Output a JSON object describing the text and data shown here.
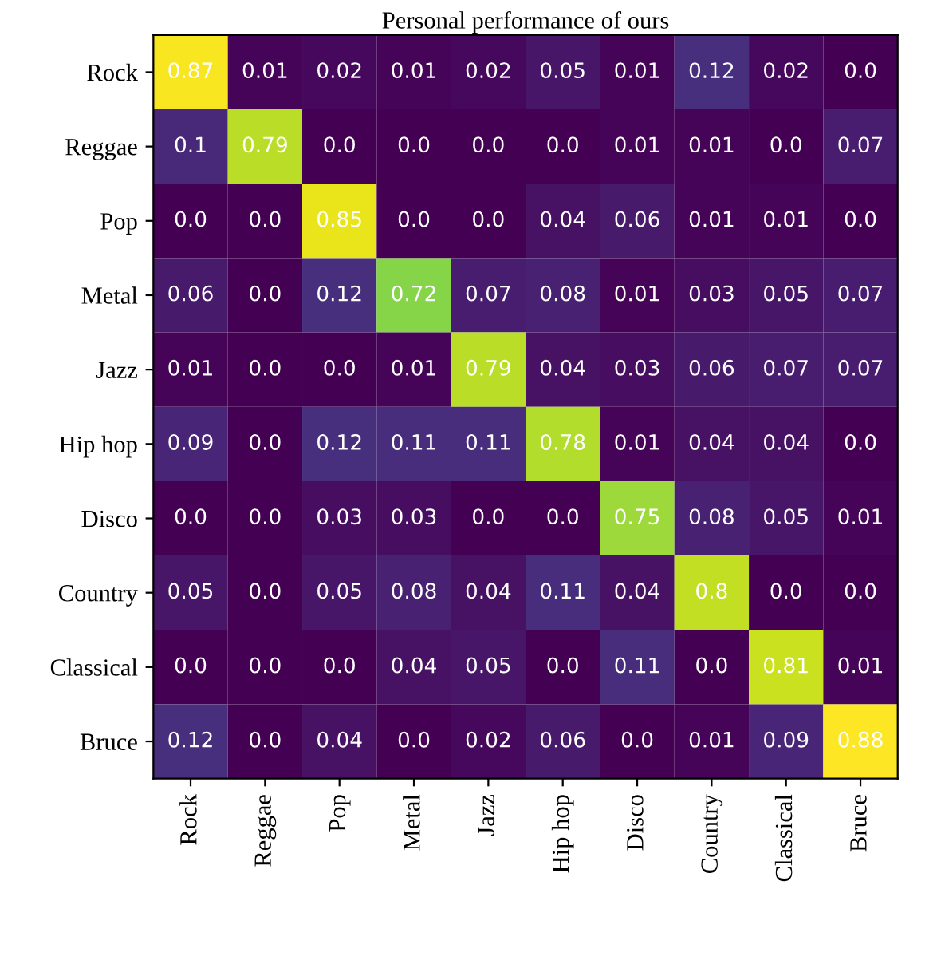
{
  "chart_data": {
    "type": "heatmap",
    "title": "Personal performance of ours",
    "categories": [
      "Rock",
      "Reggae",
      "Pop",
      "Metal",
      "Jazz",
      "Hip hop",
      "Disco",
      "Country",
      "Classical",
      "Bruce"
    ],
    "y_categories": [
      "Rock",
      "Reggae",
      "Pop",
      "Metal",
      "Jazz",
      "Hip hop",
      "Disco",
      "Country",
      "Classical",
      "Bruce"
    ],
    "cells": [
      [
        0.87,
        0.01,
        0.02,
        0.01,
        0.02,
        0.05,
        0.01,
        0.12,
        0.02,
        0.0
      ],
      [
        0.1,
        0.79,
        0.0,
        0.0,
        0.0,
        0.0,
        0.01,
        0.01,
        0.0,
        0.07
      ],
      [
        0.0,
        0.0,
        0.85,
        0.0,
        0.0,
        0.04,
        0.06,
        0.01,
        0.01,
        0.0
      ],
      [
        0.06,
        0.0,
        0.12,
        0.72,
        0.07,
        0.08,
        0.01,
        0.03,
        0.05,
        0.07
      ],
      [
        0.01,
        0.0,
        0.0,
        0.01,
        0.79,
        0.04,
        0.03,
        0.06,
        0.07,
        0.07
      ],
      [
        0.09,
        0.0,
        0.12,
        0.11,
        0.11,
        0.78,
        0.01,
        0.04,
        0.04,
        0.0
      ],
      [
        0.0,
        0.0,
        0.03,
        0.03,
        0.0,
        0.0,
        0.75,
        0.08,
        0.05,
        0.01
      ],
      [
        0.05,
        0.0,
        0.05,
        0.08,
        0.04,
        0.11,
        0.04,
        0.8,
        0.0,
        0.0
      ],
      [
        0.0,
        0.0,
        0.0,
        0.04,
        0.05,
        0.0,
        0.11,
        0.0,
        0.81,
        0.01
      ],
      [
        0.12,
        0.0,
        0.04,
        0.0,
        0.02,
        0.06,
        0.0,
        0.01,
        0.09,
        0.88
      ]
    ],
    "cell_labels": [
      [
        "0.87",
        "0.01",
        "0.02",
        "0.01",
        "0.02",
        "0.05",
        "0.01",
        "0.12",
        "0.02",
        "0.0"
      ],
      [
        "0.1",
        "0.79",
        "0.0",
        "0.0",
        "0.0",
        "0.0",
        "0.01",
        "0.01",
        "0.0",
        "0.07"
      ],
      [
        "0.0",
        "0.0",
        "0.85",
        "0.0",
        "0.0",
        "0.04",
        "0.06",
        "0.01",
        "0.01",
        "0.0"
      ],
      [
        "0.06",
        "0.0",
        "0.12",
        "0.72",
        "0.07",
        "0.08",
        "0.01",
        "0.03",
        "0.05",
        "0.07"
      ],
      [
        "0.01",
        "0.0",
        "0.0",
        "0.01",
        "0.79",
        "0.04",
        "0.03",
        "0.06",
        "0.07",
        "0.07"
      ],
      [
        "0.09",
        "0.0",
        "0.12",
        "0.11",
        "0.11",
        "0.78",
        "0.01",
        "0.04",
        "0.04",
        "0.0"
      ],
      [
        "0.0",
        "0.0",
        "0.03",
        "0.03",
        "0.0",
        "0.0",
        "0.75",
        "0.08",
        "0.05",
        "0.01"
      ],
      [
        "0.05",
        "0.0",
        "0.05",
        "0.08",
        "0.04",
        "0.11",
        "0.04",
        "0.8",
        "0.0",
        "0.0"
      ],
      [
        "0.0",
        "0.0",
        "0.0",
        "0.04",
        "0.05",
        "0.0",
        "0.11",
        "0.0",
        "0.81",
        "0.01"
      ],
      [
        "0.12",
        "0.0",
        "0.04",
        "0.0",
        "0.02",
        "0.06",
        "0.0",
        "0.01",
        "0.09",
        "0.88"
      ]
    ]
  }
}
